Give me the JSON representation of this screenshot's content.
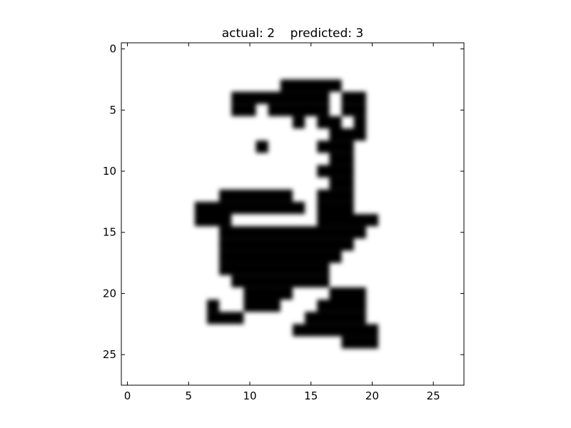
{
  "chart_data": {
    "type": "heatmap",
    "title": "actual: 2    predicted: 3",
    "colormap": "gray_r",
    "interpolation": "smooth",
    "xlim": [
      -0.5,
      27.5
    ],
    "ylim": [
      27.5,
      -0.5
    ],
    "x_ticks": [
      0,
      5,
      10,
      15,
      20,
      25
    ],
    "y_ticks": [
      0,
      5,
      10,
      15,
      20,
      25
    ],
    "x_tick_labels": [
      "0",
      "5",
      "10",
      "15",
      "20",
      "25"
    ],
    "y_tick_labels": [
      "0",
      "5",
      "10",
      "15",
      "20",
      "25"
    ],
    "grid": false,
    "matrix_size": [
      28,
      28
    ],
    "dark_runs": [
      [
        3,
        13,
        17
      ],
      [
        4,
        9,
        16
      ],
      [
        4,
        18,
        19
      ],
      [
        5,
        9,
        10
      ],
      [
        5,
        12,
        16
      ],
      [
        5,
        18,
        19
      ],
      [
        6,
        14,
        14
      ],
      [
        6,
        16,
        17
      ],
      [
        6,
        19,
        19
      ],
      [
        7,
        17,
        19
      ],
      [
        8,
        11,
        11
      ],
      [
        8,
        16,
        18
      ],
      [
        9,
        17,
        18
      ],
      [
        10,
        16,
        18
      ],
      [
        11,
        17,
        18
      ],
      [
        12,
        8,
        13
      ],
      [
        12,
        16,
        18
      ],
      [
        13,
        6,
        14
      ],
      [
        13,
        16,
        18
      ],
      [
        14,
        6,
        8
      ],
      [
        14,
        16,
        20
      ],
      [
        15,
        8,
        19
      ],
      [
        16,
        8,
        18
      ],
      [
        17,
        8,
        17
      ],
      [
        18,
        8,
        16
      ],
      [
        19,
        9,
        16
      ],
      [
        20,
        10,
        13
      ],
      [
        20,
        17,
        19
      ],
      [
        21,
        7,
        7
      ],
      [
        21,
        10,
        12
      ],
      [
        21,
        16,
        19
      ],
      [
        22,
        7,
        9
      ],
      [
        22,
        15,
        19
      ],
      [
        23,
        14,
        20
      ],
      [
        24,
        18,
        20
      ]
    ]
  }
}
